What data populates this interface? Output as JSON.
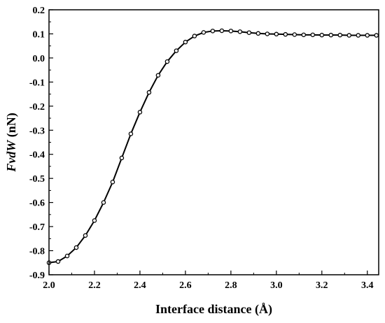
{
  "chart_data": {
    "type": "line",
    "title": "",
    "xlabel": "Interface distance (Å)",
    "ylabel_italic": "FvdW",
    "ylabel_rest": " (nN)",
    "xlim": [
      2.0,
      3.45
    ],
    "ylim": [
      -0.9,
      0.2
    ],
    "xticks": [
      2.0,
      2.2,
      2.4,
      2.6,
      2.8,
      3.0,
      3.2,
      3.4
    ],
    "xtick_labels": [
      "2.0",
      "2.2",
      "2.4",
      "2.6",
      "2.8",
      "3.0",
      "3.2",
      "3.4"
    ],
    "yticks": [
      0.2,
      0.1,
      0.0,
      -0.1,
      -0.2,
      -0.3,
      -0.4,
      -0.5,
      -0.6,
      -0.7,
      -0.8,
      -0.9
    ],
    "ytick_labels": [
      "0.2",
      "0.1",
      "0.0",
      "-0.1",
      "-0.2",
      "-0.3",
      "-0.4",
      "-0.5",
      "-0.6",
      "-0.7",
      "-0.8",
      "-0.9"
    ],
    "grid": false,
    "line_color": "#000000",
    "marker": "circle",
    "series": [
      {
        "x": [
          2.0,
          2.04,
          2.08,
          2.12,
          2.16,
          2.2,
          2.24,
          2.28,
          2.32,
          2.36,
          2.4,
          2.44,
          2.48,
          2.52,
          2.56,
          2.6,
          2.64,
          2.68,
          2.72,
          2.76,
          2.8,
          2.84,
          2.88,
          2.92,
          2.96,
          3.0,
          3.04,
          3.08,
          3.12,
          3.16,
          3.2,
          3.24,
          3.28,
          3.32,
          3.36,
          3.4,
          3.44
        ],
        "y": [
          -0.85,
          -0.845,
          -0.822,
          -0.787,
          -0.737,
          -0.675,
          -0.6,
          -0.515,
          -0.415,
          -0.315,
          -0.225,
          -0.143,
          -0.072,
          -0.015,
          0.03,
          0.066,
          0.091,
          0.106,
          0.112,
          0.113,
          0.112,
          0.109,
          0.105,
          0.102,
          0.1,
          0.099,
          0.098,
          0.097,
          0.096,
          0.096,
          0.095,
          0.095,
          0.095,
          0.094,
          0.094,
          0.094,
          0.094
        ]
      }
    ]
  }
}
